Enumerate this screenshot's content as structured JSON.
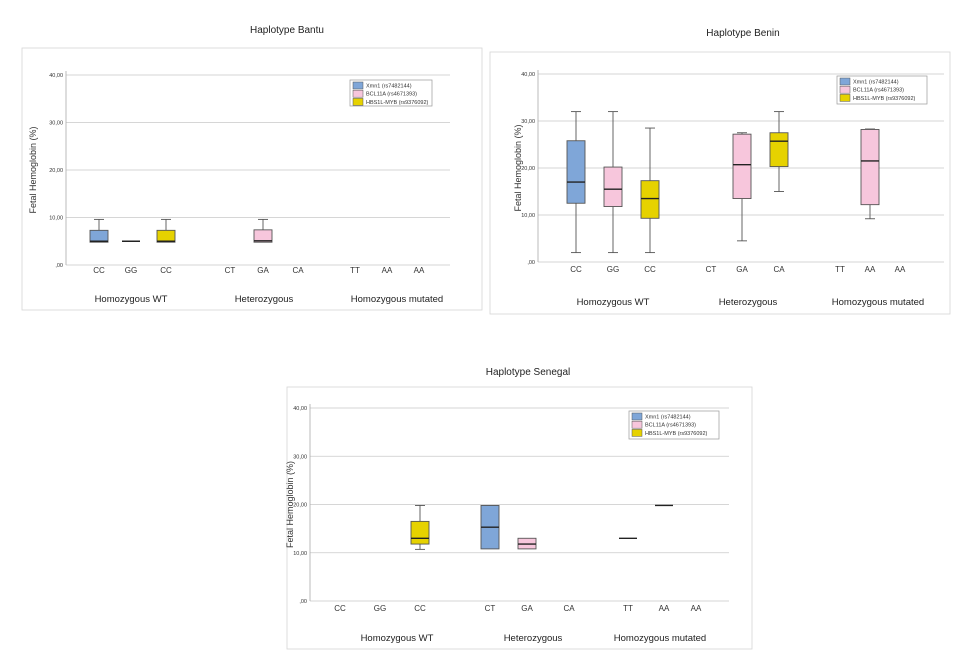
{
  "chart_data": [
    {
      "type": "box",
      "title": "Haplotype Bantu",
      "ylabel": "Fetal Hemoglobin (%)",
      "ylim": [
        0,
        40
      ],
      "yticks": [
        "40,00",
        "30,00",
        "20,00",
        "10,00",
        ",00"
      ],
      "legend_position": "top-right",
      "series": [
        {
          "name": "Xmn1 (rs7482144)",
          "color": "#7fa6d8"
        },
        {
          "name": "BCL11A (rs4671393)",
          "color": "#f7c6dc"
        },
        {
          "name": "HBS1L-MYB (rs9376092)",
          "color": "#e6d200"
        }
      ],
      "groups": [
        {
          "label": "Homozygous WT",
          "categories": [
            "CC",
            "GG",
            "CC"
          ],
          "boxes": [
            {
              "min": 4.8,
              "q1": 4.8,
              "median": 5.0,
              "q3": 7.3,
              "max": 9.6
            },
            {
              "min": 5.0,
              "q1": 5.0,
              "median": 5.0,
              "q3": 5.0,
              "max": 5.0
            },
            {
              "min": 4.8,
              "q1": 4.8,
              "median": 5.0,
              "q3": 7.3,
              "max": 9.6
            }
          ]
        },
        {
          "label": "Heterozygous",
          "categories": [
            "CT",
            "GA",
            "CA"
          ],
          "boxes": [
            null,
            {
              "min": 4.8,
              "q1": 4.8,
              "median": 5.1,
              "q3": 7.4,
              "max": 9.6
            },
            null
          ]
        },
        {
          "label": "Homozygous mutated",
          "categories": [
            "TT",
            "AA",
            "AA"
          ],
          "boxes": [
            null,
            null,
            null
          ]
        }
      ]
    },
    {
      "type": "box",
      "title": "Haplotype Benin",
      "ylabel": "Fetal Hemoglobin (%)",
      "ylim": [
        0,
        40
      ],
      "yticks": [
        "40,00",
        "30,00",
        "20,00",
        "10,00",
        ",00"
      ],
      "legend_position": "top-right",
      "series": [
        {
          "name": "Xmn1 (rs7482144)",
          "color": "#7fa6d8"
        },
        {
          "name": "BCL11A (rs4671393)",
          "color": "#f7c6dc"
        },
        {
          "name": "HBS1L-MYB (rs9376092)",
          "color": "#e6d200"
        }
      ],
      "groups": [
        {
          "label": "Homozygous WT",
          "categories": [
            "CC",
            "GG",
            "CC"
          ],
          "boxes": [
            {
              "min": 2.0,
              "q1": 12.5,
              "median": 17.0,
              "q3": 25.8,
              "max": 32.0
            },
            {
              "min": 2.0,
              "q1": 11.8,
              "median": 15.5,
              "q3": 20.2,
              "max": 32.0
            },
            {
              "min": 2.0,
              "q1": 9.3,
              "median": 13.5,
              "q3": 17.3,
              "max": 28.5
            }
          ]
        },
        {
          "label": "Heterozygous",
          "categories": [
            "CT",
            "GA",
            "CA"
          ],
          "boxes": [
            null,
            {
              "min": 4.5,
              "q1": 13.5,
              "median": 20.7,
              "q3": 27.2,
              "max": 27.5
            },
            {
              "min": 15.0,
              "q1": 20.3,
              "median": 25.7,
              "q3": 27.5,
              "max": 32.0
            }
          ]
        },
        {
          "label": "Homozygous mutated",
          "categories": [
            "TT",
            "AA",
            "AA"
          ],
          "boxes": [
            null,
            {
              "min": 9.2,
              "q1": 12.2,
              "median": 21.5,
              "q3": 28.2,
              "max": 28.3
            },
            null
          ]
        }
      ]
    },
    {
      "type": "box",
      "title": "Haplotype Senegal",
      "ylabel": "Fetal Hemoglobin (%)",
      "ylim": [
        0,
        40
      ],
      "yticks": [
        "40,00",
        "30,00",
        "20,00",
        "10,00",
        ",00"
      ],
      "legend_position": "top-right",
      "series": [
        {
          "name": "Xmn1 (rs7482144)",
          "color": "#7fa6d8"
        },
        {
          "name": "BCL11A (rs4671393)",
          "color": "#f7c6dc"
        },
        {
          "name": "HBS1L-MYB (rs9376092)",
          "color": "#e6d200"
        }
      ],
      "groups": [
        {
          "label": "Homozygous WT",
          "categories": [
            "CC",
            "GG",
            "CC"
          ],
          "boxes": [
            null,
            null,
            {
              "min": 10.7,
              "q1": 11.8,
              "median": 13.0,
              "q3": 16.5,
              "max": 19.8
            }
          ]
        },
        {
          "label": "Heterozygous",
          "categories": [
            "CT",
            "GA",
            "CA"
          ],
          "boxes": [
            {
              "min": 10.8,
              "q1": 10.8,
              "median": 15.3,
              "q3": 19.8,
              "max": 19.8
            },
            {
              "min": 10.8,
              "q1": 10.8,
              "median": 11.8,
              "q3": 13.0,
              "max": 13.0
            },
            null
          ]
        },
        {
          "label": "Homozygous mutated",
          "categories": [
            "TT",
            "AA",
            "AA"
          ],
          "boxes": [
            {
              "min": 13.0,
              "q1": 13.0,
              "median": 13.0,
              "q3": 13.0,
              "max": 13.0
            },
            {
              "min": 19.8,
              "q1": 19.8,
              "median": 19.8,
              "q3": 19.8,
              "max": 19.8
            },
            null
          ]
        }
      ]
    }
  ]
}
